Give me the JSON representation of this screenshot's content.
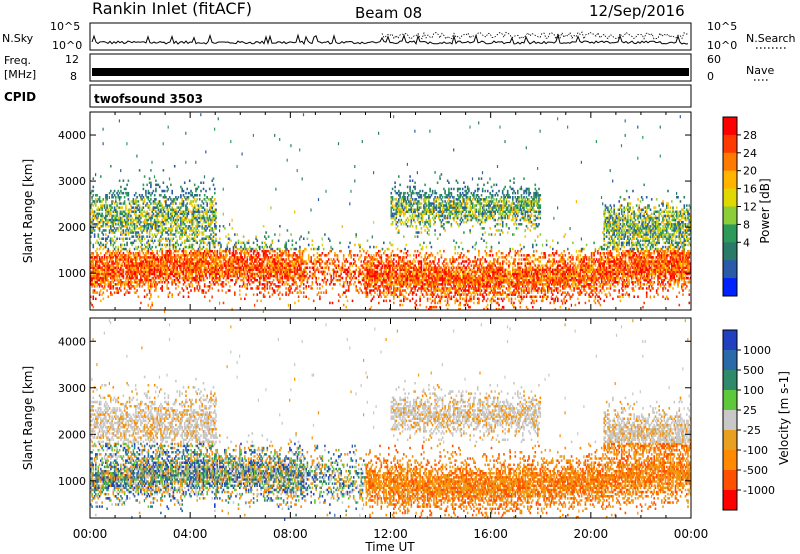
{
  "header": {
    "station": "Rankin Inlet (fitACF)",
    "beam": "Beam 08",
    "date": "12/Sep/2016"
  },
  "strips": {
    "nsky_label": "N.Sky",
    "nsky_ticks": [
      "10^5",
      "10^0"
    ],
    "nsearch_label": "N.Search",
    "nsearch_ticks": [
      "10^5",
      "10^0"
    ],
    "freq_label": "Freq.",
    "freq_unit": "[MHz]",
    "freq_ticks": [
      "12",
      "8"
    ],
    "nave_label": "Nave",
    "nave_ticks": [
      "60",
      "0"
    ],
    "cpid_label": "CPID",
    "cpid_value": "twofsound 3503"
  },
  "chart_data": [
    {
      "type": "heatmap",
      "name": "power",
      "ylabel": "Slant Range [km]",
      "yticks": [
        1000,
        2000,
        3000,
        4000
      ],
      "ylim": [
        200,
        4500
      ],
      "xlabel": "Time UT",
      "xticks": [
        "00:00",
        "04:00",
        "08:00",
        "12:00",
        "16:00",
        "20:00",
        "00:00"
      ],
      "xlim_hours": [
        0,
        24
      ],
      "colorbar": {
        "label": "Power [dB]",
        "ticks": [
          "28",
          "24",
          "20",
          "16",
          "12",
          "8",
          "4"
        ],
        "colors": [
          "#ff0000",
          "#ff3a00",
          "#ff7a00",
          "#ffb400",
          "#e0d800",
          "#8ccd3a",
          "#2e9a5a",
          "#2a7a6a",
          "#2a5aa8",
          "#0022ff"
        ]
      }
    },
    {
      "type": "heatmap",
      "name": "velocity",
      "ylabel": "Slant Range [km]",
      "yticks": [
        1000,
        2000,
        3000,
        4000
      ],
      "ylim": [
        200,
        4500
      ],
      "xlabel": "Time UT",
      "xticks": [
        "00:00",
        "04:00",
        "08:00",
        "12:00",
        "16:00",
        "20:00",
        "00:00"
      ],
      "xlim_hours": [
        0,
        24
      ],
      "colorbar": {
        "label": "Velocity [m s-1]",
        "ticks": [
          "1000",
          "500",
          "100",
          "25",
          "-25",
          "-100",
          "-500",
          "-1000"
        ],
        "colors": [
          "#2040c0",
          "#2a6aa8",
          "#2e8a6a",
          "#5cc83a",
          "#c8c8c8",
          "#e8a020",
          "#ff8a00",
          "#ff5000",
          "#ff0000"
        ]
      }
    }
  ],
  "footer": {
    "xlabel": "Time UT",
    "xticks": [
      "00:00",
      "04:00",
      "08:00",
      "12:00",
      "16:00",
      "20:00",
      "00:00"
    ]
  }
}
